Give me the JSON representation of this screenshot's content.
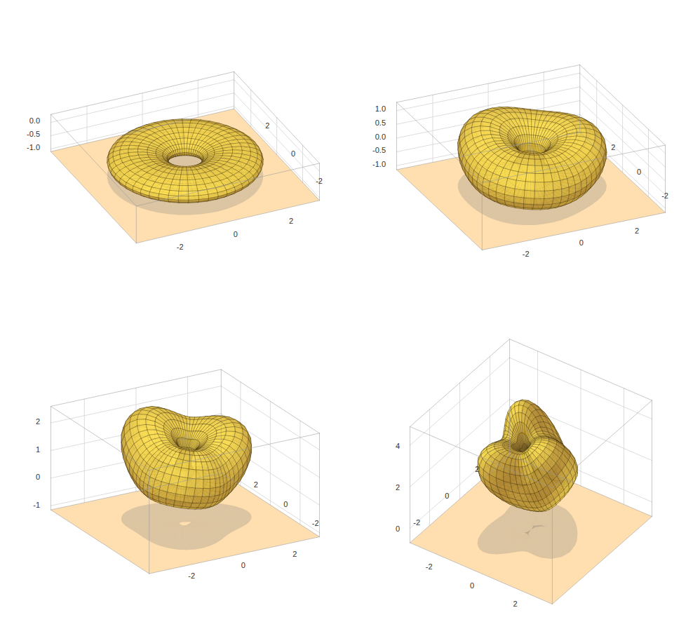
{
  "chart_data": [
    {
      "type": "surface3d",
      "color": "#f7b040",
      "grid": true,
      "xlim": [
        -3.3,
        3.3
      ],
      "ylim": [
        -3.3,
        3.3
      ],
      "zlim": [
        -1.1,
        0.3
      ],
      "xticks": [
        -2,
        0,
        2
      ],
      "yticks": [
        -2,
        0,
        2
      ],
      "zticks": [
        {
          "value": 0,
          "label": "0.0"
        },
        {
          "value": -0.5,
          "label": "-0.5"
        },
        {
          "value": -1,
          "label": "-1.0"
        }
      ]
    },
    {
      "type": "surface3d",
      "color": "#f7b040",
      "grid": true,
      "xlim": [
        -3.3,
        3.3
      ],
      "ylim": [
        -3.3,
        3.3
      ],
      "zlim": [
        -1.15,
        1.3
      ],
      "xticks": [
        -2,
        0,
        2
      ],
      "yticks": [
        -2,
        0,
        2
      ],
      "zticks": [
        {
          "value": 1,
          "label": "1.0"
        },
        {
          "value": 0.5,
          "label": "0.5"
        },
        {
          "value": 0,
          "label": "0.0"
        },
        {
          "value": -0.5,
          "label": "-0.5"
        },
        {
          "value": -1,
          "label": "-1.0"
        }
      ]
    },
    {
      "type": "surface3d",
      "color": "#f7b040",
      "grid": true,
      "xlim": [
        -3.3,
        3.3
      ],
      "ylim": [
        -3.3,
        3.3
      ],
      "zlim": [
        -1.15,
        2.6
      ],
      "xticks": [
        -2,
        0,
        2
      ],
      "yticks": [
        -2,
        0,
        2
      ],
      "zticks": [
        2,
        1,
        0,
        -1
      ]
    },
    {
      "type": "surface3d",
      "color": "#f7b040",
      "grid": true,
      "xlim": [
        -3.3,
        3.3
      ],
      "ylim": [
        -3.3,
        3.3
      ],
      "zlim": [
        -0.7,
        4.9
      ],
      "xticks": [
        -2,
        0,
        2
      ],
      "yticks": [
        -2,
        0,
        2
      ],
      "zticks": [
        4,
        2,
        0
      ]
    }
  ]
}
